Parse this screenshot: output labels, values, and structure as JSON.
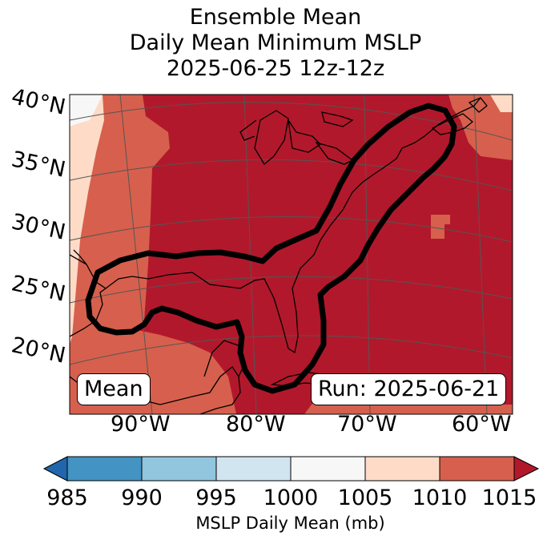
{
  "title": {
    "line1": "Ensemble Mean",
    "line2": "Daily Mean Minimum MSLP",
    "line3": "2025-06-25 12z-12z"
  },
  "map": {
    "lat_labels": [
      "40°N",
      "35°N",
      "30°N",
      "25°N",
      "20°N"
    ],
    "lon_labels": [
      "90°W",
      "80°W",
      "70°W",
      "60°W"
    ],
    "mean_label": "Mean",
    "run_label": "Run: 2025-06-21"
  },
  "colorbar": {
    "ticks": [
      "985",
      "990",
      "995",
      "1000",
      "1005",
      "1010",
      "1015"
    ],
    "colors": [
      "#2166ac",
      "#4393c3",
      "#92c5de",
      "#d1e5f0",
      "#f7f7f7",
      "#fddbc7",
      "#d6604d",
      "#b2182b"
    ],
    "label": "MSLP Daily Mean (mb)"
  },
  "fill_colors": {
    "c1000": "#f7f7f7",
    "c1005": "#fddbc7",
    "c1010": "#d6604d",
    "c1015": "#b2182b"
  }
}
